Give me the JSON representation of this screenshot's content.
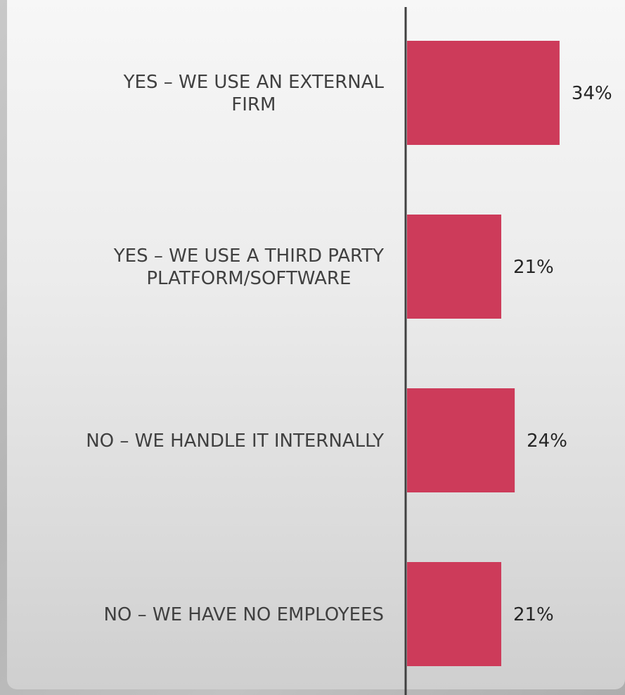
{
  "chart_data": {
    "type": "bar",
    "orientation": "horizontal",
    "title": "",
    "xlabel": "",
    "ylabel": "",
    "categories": [
      [
        "YES – WE USE AN EXTERNAL",
        "FIRM"
      ],
      [
        "YES – WE USE A THIRD PARTY",
        "PLATFORM/SOFTWARE"
      ],
      [
        "NO – WE HANDLE IT INTERNALLY"
      ],
      [
        "NO – WE HAVE NO EMPLOYEES"
      ]
    ],
    "values": [
      34,
      21,
      24,
      21
    ],
    "value_labels": [
      "34%",
      "21%",
      "24%",
      "21%"
    ],
    "unit": "%",
    "xlim": [
      0,
      35
    ],
    "grid": false,
    "legend": "none",
    "bar_color": "#cd3b5a",
    "axis_color": "#404040"
  }
}
